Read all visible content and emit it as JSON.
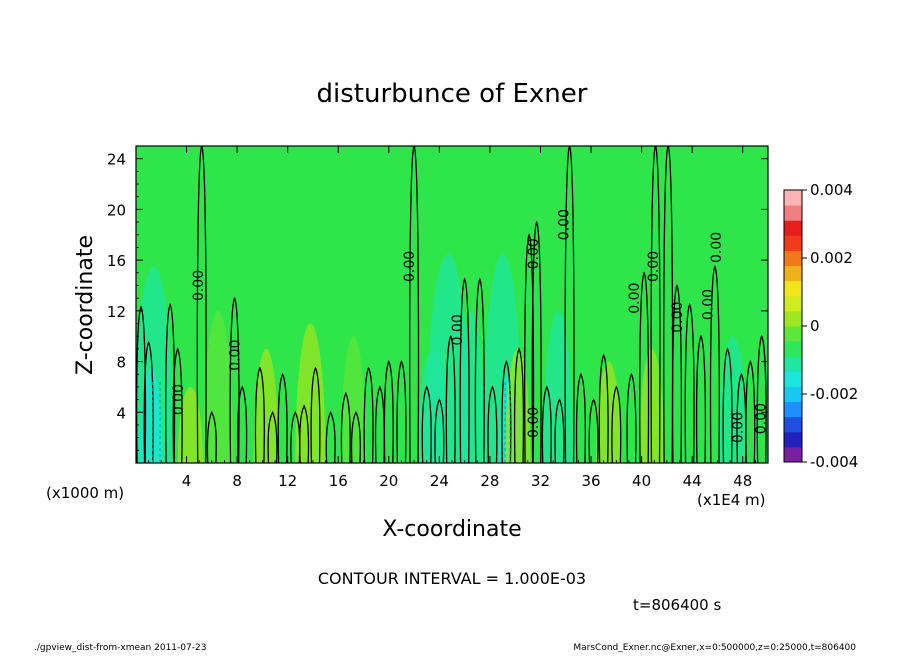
{
  "chart_data": {
    "type": "heatmap",
    "title": "disturbunce of Exner",
    "xlabel": "X-coordinate",
    "ylabel": "Z-coordinate",
    "x_unit_left": "(x1000 m)",
    "x_unit_right": "(x1E4 m)",
    "xlim": [
      0,
      50
    ],
    "ylim": [
      0,
      25
    ],
    "x_ticks": [
      4,
      8,
      12,
      16,
      20,
      24,
      28,
      32,
      36,
      40,
      44,
      48
    ],
    "y_ticks": [
      4,
      8,
      12,
      16,
      20,
      24
    ],
    "colorbar": {
      "min": -0.004,
      "max": 0.004,
      "tick_labels": [
        "0.004",
        "0.002",
        "0",
        "-0.002",
        "-0.004"
      ],
      "tick_values": [
        0.004,
        0.002,
        0,
        -0.002,
        -0.004
      ],
      "colors": [
        "#7a1fa2",
        "#2222bb",
        "#1f4fe0",
        "#1e90ff",
        "#19c8f0",
        "#19e6dc",
        "#1fe6a0",
        "#2ee65a",
        "#5ee63a",
        "#9ee61f",
        "#ccee1f",
        "#f0e61a",
        "#f0b21a",
        "#f07a1a",
        "#f03c1a",
        "#e61e1e",
        "#f08080",
        "#ffb4b4"
      ]
    },
    "contour_label": "0.00",
    "contour_labels": [
      {
        "x": 5.3,
        "y": 14.0
      },
      {
        "x": 3.7,
        "y": 5.0
      },
      {
        "x": 8.2,
        "y": 8.5
      },
      {
        "x": 22.0,
        "y": 15.5
      },
      {
        "x": 25.8,
        "y": 10.5
      },
      {
        "x": 31.8,
        "y": 16.5
      },
      {
        "x": 34.2,
        "y": 18.8
      },
      {
        "x": 31.8,
        "y": 3.2
      },
      {
        "x": 39.8,
        "y": 13.0
      },
      {
        "x": 41.3,
        "y": 15.5
      },
      {
        "x": 43.2,
        "y": 11.5
      },
      {
        "x": 45.6,
        "y": 12.5
      },
      {
        "x": 46.3,
        "y": 17.0
      },
      {
        "x": 48.0,
        "y": 2.8
      },
      {
        "x": 49.8,
        "y": 3.5
      }
    ],
    "contour_interval_text": "CONTOUR INTERVAL = 1.000E-03",
    "time_text": "t=806400 s"
  },
  "footer": {
    "left": "./gpview_dist-from-xmean 2011-07-23",
    "right": "MarsCond_Exner.nc@Exner,x=0:500000,z=0:25000,t=806400"
  }
}
